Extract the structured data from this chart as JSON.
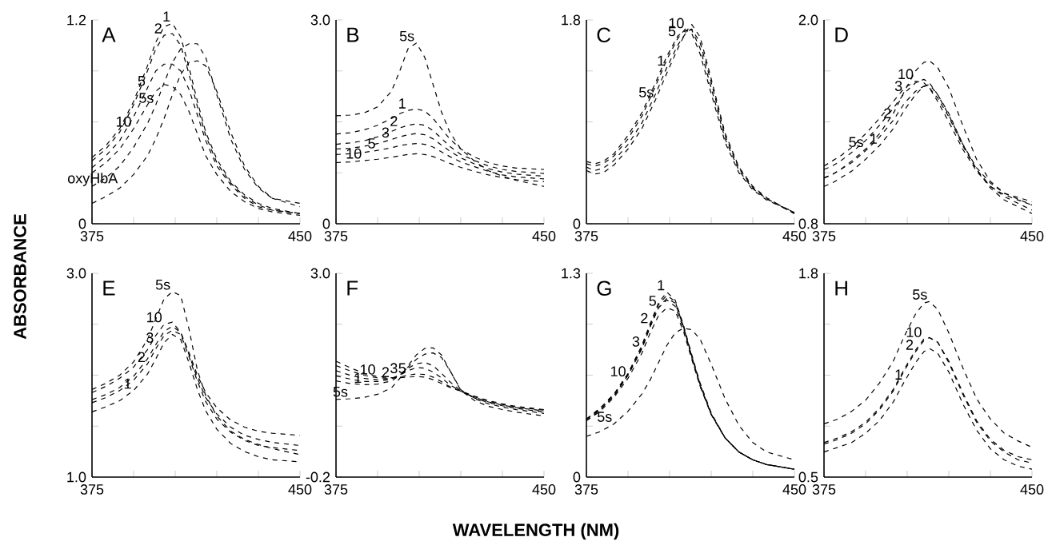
{
  "chart_data": [
    {
      "type": "line",
      "title": "A",
      "ylabel": "ABSORBANCE",
      "line_style": "dashed",
      "xlim": [
        375,
        450
      ],
      "ylim": [
        0,
        1.2
      ],
      "xticks": [
        375,
        {
          "value": 390,
          "label": null
        },
        {
          "value": 405,
          "label": null
        },
        {
          "value": 420,
          "label": null
        },
        {
          "value": 435,
          "label": null
        },
        450
      ],
      "yticks": [
        0,
        {
          "value": 0.3,
          "label": null
        },
        {
          "value": 0.6,
          "label": null
        },
        {
          "value": 0.9,
          "label": null
        },
        1.2
      ],
      "x": [
        375,
        380,
        385,
        390,
        395,
        398,
        401,
        404,
        407,
        410,
        413,
        416,
        420,
        425,
        430,
        435,
        440,
        450
      ],
      "series": [
        {
          "name": "1",
          "color": "#000000",
          "values": [
            0.39,
            0.46,
            0.56,
            0.72,
            0.93,
            1.07,
            1.16,
            1.18,
            1.1,
            0.92,
            0.72,
            0.54,
            0.38,
            0.25,
            0.17,
            0.12,
            0.09,
            0.06
          ]
        },
        {
          "name": "2",
          "color": "#000000",
          "values": [
            0.37,
            0.44,
            0.54,
            0.7,
            0.9,
            1.03,
            1.11,
            1.12,
            1.05,
            0.88,
            0.69,
            0.52,
            0.36,
            0.24,
            0.16,
            0.11,
            0.08,
            0.06
          ]
        },
        {
          "name": "5",
          "color": "#000000",
          "values": [
            0.33,
            0.4,
            0.49,
            0.63,
            0.8,
            0.9,
            0.94,
            0.94,
            0.9,
            0.79,
            0.64,
            0.49,
            0.34,
            0.23,
            0.15,
            0.1,
            0.08,
            0.06
          ]
        },
        {
          "name": "10",
          "color": "#000000",
          "values": [
            0.3,
            0.36,
            0.44,
            0.56,
            0.7,
            0.78,
            0.82,
            0.81,
            0.76,
            0.66,
            0.53,
            0.4,
            0.29,
            0.19,
            0.13,
            0.09,
            0.07,
            0.05
          ]
        },
        {
          "name": "5s",
          "color": "#000000",
          "values": [
            0.22,
            0.27,
            0.34,
            0.45,
            0.59,
            0.7,
            0.83,
            0.95,
            1.03,
            1.06,
            1.06,
            0.98,
            0.76,
            0.5,
            0.32,
            0.21,
            0.15,
            0.12
          ]
        },
        {
          "name": "oxyHbA",
          "color": "#000000",
          "values": [
            0.12,
            0.16,
            0.21,
            0.29,
            0.4,
            0.5,
            0.62,
            0.76,
            0.88,
            0.95,
            0.96,
            0.93,
            0.78,
            0.54,
            0.34,
            0.22,
            0.15,
            0.1
          ]
        }
      ]
    },
    {
      "type": "line",
      "title": "B",
      "line_style": "dashed",
      "xlim": [
        375,
        450
      ],
      "ylim": [
        0,
        3.0
      ],
      "xticks": [
        375,
        {
          "value": 390,
          "label": null
        },
        {
          "value": 405,
          "label": null
        },
        {
          "value": 420,
          "label": null
        },
        {
          "value": 435,
          "label": null
        },
        450
      ],
      "yticks": [
        0,
        {
          "value": 0.75,
          "label": null
        },
        {
          "value": 1.5,
          "label": null
        },
        {
          "value": 2.25,
          "label": null
        },
        {
          "value": 3.0,
          "label": "3.0"
        }
      ],
      "x": [
        375,
        380,
        385,
        390,
        395,
        398,
        401,
        404,
        407,
        410,
        413,
        416,
        420,
        425,
        430,
        435,
        440,
        450
      ],
      "series": [
        {
          "name": "5s",
          "color": "#000000",
          "values": [
            1.59,
            1.6,
            1.63,
            1.72,
            1.95,
            2.25,
            2.58,
            2.66,
            2.45,
            2.05,
            1.65,
            1.35,
            1.1,
            0.92,
            0.78,
            0.7,
            0.64,
            0.55
          ]
        },
        {
          "name": "1",
          "color": "#000000",
          "values": [
            1.32,
            1.34,
            1.38,
            1.45,
            1.55,
            1.62,
            1.67,
            1.69,
            1.66,
            1.55,
            1.4,
            1.25,
            1.1,
            0.98,
            0.9,
            0.85,
            0.82,
            0.8
          ]
        },
        {
          "name": "2",
          "color": "#000000",
          "values": [
            1.17,
            1.19,
            1.22,
            1.28,
            1.36,
            1.41,
            1.45,
            1.47,
            1.45,
            1.37,
            1.26,
            1.14,
            1.02,
            0.93,
            0.85,
            0.8,
            0.77,
            0.74
          ]
        },
        {
          "name": "3",
          "color": "#000000",
          "values": [
            1.1,
            1.11,
            1.14,
            1.18,
            1.24,
            1.28,
            1.31,
            1.33,
            1.31,
            1.25,
            1.16,
            1.07,
            0.97,
            0.88,
            0.81,
            0.76,
            0.73,
            0.7
          ]
        },
        {
          "name": "5",
          "color": "#000000",
          "values": [
            1.02,
            1.03,
            1.05,
            1.08,
            1.12,
            1.15,
            1.17,
            1.18,
            1.17,
            1.13,
            1.06,
            0.99,
            0.91,
            0.84,
            0.77,
            0.72,
            0.69,
            0.66
          ]
        },
        {
          "name": "10",
          "color": "#000000",
          "values": [
            0.9,
            0.91,
            0.93,
            0.95,
            0.98,
            1.0,
            1.02,
            1.03,
            1.02,
            0.99,
            0.94,
            0.89,
            0.83,
            0.77,
            0.72,
            0.68,
            0.65,
            0.62
          ]
        }
      ]
    },
    {
      "type": "line",
      "title": "C",
      "line_style": "dashed",
      "xlim": [
        375,
        450
      ],
      "ylim": [
        0,
        1.8
      ],
      "xticks": [
        375,
        {
          "value": 390,
          "label": null
        },
        {
          "value": 405,
          "label": null
        },
        {
          "value": 420,
          "label": null
        },
        {
          "value": 435,
          "label": null
        },
        450
      ],
      "yticks": [
        0,
        {
          "value": 0.45,
          "label": null
        },
        {
          "value": 0.9,
          "label": null
        },
        {
          "value": 1.35,
          "label": null
        },
        1.8
      ],
      "x": [
        375,
        378,
        381,
        385,
        390,
        395,
        400,
        404,
        408,
        411,
        413,
        416,
        420,
        425,
        430,
        435,
        440,
        450
      ],
      "series": [
        {
          "name": "10",
          "color": "#000000",
          "values": [
            0.55,
            0.53,
            0.55,
            0.62,
            0.78,
            0.98,
            1.25,
            1.48,
            1.66,
            1.71,
            1.68,
            1.5,
            1.15,
            0.72,
            0.45,
            0.3,
            0.21,
            0.1
          ]
        },
        {
          "name": "5",
          "color": "#000000",
          "values": [
            0.53,
            0.51,
            0.53,
            0.6,
            0.75,
            0.95,
            1.22,
            1.45,
            1.64,
            1.73,
            1.71,
            1.55,
            1.2,
            0.75,
            0.47,
            0.31,
            0.22,
            0.1
          ]
        },
        {
          "name": "1",
          "color": "#000000",
          "values": [
            0.5,
            0.47,
            0.49,
            0.56,
            0.7,
            0.89,
            1.15,
            1.38,
            1.58,
            1.69,
            1.72,
            1.6,
            1.25,
            0.78,
            0.49,
            0.32,
            0.22,
            0.09
          ]
        },
        {
          "name": "5s",
          "color": "#000000",
          "values": [
            0.47,
            0.44,
            0.45,
            0.52,
            0.66,
            0.84,
            1.1,
            1.33,
            1.55,
            1.7,
            1.76,
            1.65,
            1.28,
            0.8,
            0.5,
            0.33,
            0.23,
            0.09
          ]
        }
      ]
    },
    {
      "type": "line",
      "title": "D",
      "line_style": "dashed",
      "xlim": [
        375,
        450
      ],
      "ylim": [
        0.8,
        2.0
      ],
      "xticks": [
        375,
        {
          "value": 390,
          "label": null
        },
        {
          "value": 405,
          "label": null
        },
        {
          "value": 420,
          "label": null
        },
        {
          "value": 435,
          "label": null
        },
        450
      ],
      "yticks": [
        0.8,
        {
          "value": 1.1,
          "label": null
        },
        {
          "value": 1.4,
          "label": null
        },
        {
          "value": 1.7,
          "label": null
        },
        {
          "value": 2.0,
          "label": "2.0"
        }
      ],
      "x": [
        375,
        378,
        381,
        385,
        390,
        395,
        400,
        404,
        408,
        411,
        413,
        416,
        420,
        425,
        430,
        435,
        440,
        450
      ],
      "series": [
        {
          "name": "10",
          "color": "#000000",
          "values": [
            1.14,
            1.17,
            1.2,
            1.25,
            1.33,
            1.42,
            1.52,
            1.6,
            1.64,
            1.63,
            1.6,
            1.52,
            1.4,
            1.24,
            1.11,
            1.02,
            0.97,
            0.91
          ]
        },
        {
          "name": "3",
          "color": "#000000",
          "values": [
            1.12,
            1.14,
            1.17,
            1.22,
            1.29,
            1.38,
            1.48,
            1.57,
            1.63,
            1.65,
            1.63,
            1.56,
            1.44,
            1.27,
            1.13,
            1.04,
            0.98,
            0.91
          ]
        },
        {
          "name": "2",
          "color": "#000000",
          "values": [
            1.07,
            1.09,
            1.12,
            1.16,
            1.23,
            1.31,
            1.41,
            1.51,
            1.58,
            1.61,
            1.6,
            1.54,
            1.43,
            1.26,
            1.12,
            1.02,
            0.96,
            0.88
          ]
        },
        {
          "name": "1",
          "color": "#000000",
          "values": [
            1.02,
            1.04,
            1.07,
            1.11,
            1.18,
            1.26,
            1.36,
            1.47,
            1.56,
            1.61,
            1.62,
            1.56,
            1.45,
            1.27,
            1.12,
            1.01,
            0.94,
            0.86
          ]
        },
        {
          "name": "5s",
          "color": "#000000",
          "values": [
            1.07,
            1.09,
            1.12,
            1.17,
            1.24,
            1.33,
            1.45,
            1.58,
            1.7,
            1.75,
            1.76,
            1.72,
            1.6,
            1.38,
            1.18,
            1.05,
            0.98,
            0.93
          ]
        }
      ]
    },
    {
      "type": "line",
      "title": "E",
      "line_style": "dashed",
      "xlim": [
        375,
        450
      ],
      "ylim": [
        1.0,
        3.0
      ],
      "xticks": [
        375,
        {
          "value": 390,
          "label": null
        },
        {
          "value": 405,
          "label": null
        },
        {
          "value": 420,
          "label": null
        },
        {
          "value": 435,
          "label": null
        },
        450
      ],
      "yticks": [
        {
          "value": 1.0,
          "label": "1.0"
        },
        {
          "value": 1.5,
          "label": null
        },
        {
          "value": 2.0,
          "label": null
        },
        {
          "value": 2.5,
          "label": null
        },
        {
          "value": 3.0,
          "label": "3.0"
        }
      ],
      "x": [
        375,
        380,
        385,
        390,
        395,
        398,
        401,
        404,
        407,
        410,
        413,
        416,
        420,
        425,
        430,
        435,
        440,
        450
      ],
      "series": [
        {
          "name": "5s",
          "color": "#000000",
          "values": [
            1.86,
            1.92,
            2.0,
            2.13,
            2.35,
            2.55,
            2.75,
            2.82,
            2.78,
            2.45,
            2.05,
            1.8,
            1.6,
            1.45,
            1.37,
            1.32,
            1.28,
            1.22
          ]
        },
        {
          "name": "10",
          "color": "#000000",
          "values": [
            1.83,
            1.89,
            1.97,
            2.08,
            2.25,
            2.39,
            2.5,
            2.52,
            2.42,
            2.22,
            2.0,
            1.83,
            1.68,
            1.56,
            1.49,
            1.45,
            1.43,
            1.41
          ]
        },
        {
          "name": "3",
          "color": "#000000",
          "values": [
            1.76,
            1.81,
            1.88,
            1.99,
            2.16,
            2.3,
            2.43,
            2.48,
            2.42,
            2.2,
            1.97,
            1.78,
            1.62,
            1.49,
            1.41,
            1.37,
            1.34,
            1.31
          ]
        },
        {
          "name": "2",
          "color": "#000000",
          "values": [
            1.73,
            1.78,
            1.85,
            1.95,
            2.11,
            2.26,
            2.39,
            2.44,
            2.4,
            2.18,
            1.94,
            1.74,
            1.57,
            1.44,
            1.36,
            1.31,
            1.29,
            1.26
          ]
        },
        {
          "name": "1",
          "color": "#000000",
          "values": [
            1.64,
            1.69,
            1.75,
            1.85,
            2.01,
            2.16,
            2.32,
            2.4,
            2.35,
            2.12,
            1.86,
            1.65,
            1.47,
            1.33,
            1.25,
            1.2,
            1.17,
            1.15
          ]
        }
      ]
    },
    {
      "type": "line",
      "title": "F",
      "xlabel": "WAVELENGTH (NM)",
      "line_style": "dashed",
      "xlim": [
        375,
        450
      ],
      "ylim": [
        -0.2,
        3.0
      ],
      "xticks": [
        375,
        {
          "value": 390,
          "label": null
        },
        {
          "value": 405,
          "label": null
        },
        {
          "value": 420,
          "label": null
        },
        {
          "value": 435,
          "label": null
        },
        450
      ],
      "yticks": [
        -0.2,
        {
          "value": 0.6,
          "label": null
        },
        {
          "value": 1.4,
          "label": null
        },
        {
          "value": 2.2,
          "label": null
        },
        {
          "value": 3.0,
          "label": "3.0"
        }
      ],
      "x": [
        375,
        380,
        385,
        390,
        395,
        398,
        401,
        404,
        407,
        410,
        413,
        416,
        420,
        425,
        430,
        435,
        440,
        450
      ],
      "series": [
        {
          "name": "10",
          "color": "#000000",
          "values": [
            1.62,
            1.52,
            1.43,
            1.38,
            1.36,
            1.36,
            1.37,
            1.38,
            1.37,
            1.33,
            1.27,
            1.21,
            1.15,
            1.07,
            1.0,
            0.95,
            0.91,
            0.86
          ]
        },
        {
          "name": "5",
          "color": "#000000",
          "values": [
            1.55,
            1.47,
            1.4,
            1.36,
            1.35,
            1.37,
            1.4,
            1.42,
            1.41,
            1.37,
            1.3,
            1.22,
            1.15,
            1.06,
            0.99,
            0.94,
            0.9,
            0.85
          ]
        },
        {
          "name": "3",
          "color": "#000000",
          "values": [
            1.47,
            1.4,
            1.35,
            1.33,
            1.35,
            1.4,
            1.47,
            1.52,
            1.51,
            1.45,
            1.36,
            1.25,
            1.15,
            1.05,
            0.98,
            0.93,
            0.89,
            0.84
          ]
        },
        {
          "name": "2",
          "color": "#000000",
          "values": [
            1.39,
            1.34,
            1.3,
            1.3,
            1.34,
            1.41,
            1.51,
            1.58,
            1.6,
            1.55,
            1.43,
            1.3,
            1.15,
            1.04,
            0.97,
            0.92,
            0.88,
            0.82
          ]
        },
        {
          "name": "1",
          "color": "#000000",
          "values": [
            1.31,
            1.27,
            1.25,
            1.26,
            1.31,
            1.4,
            1.53,
            1.65,
            1.73,
            1.75,
            1.68,
            1.48,
            1.17,
            1.03,
            0.95,
            0.9,
            0.86,
            0.8
          ]
        },
        {
          "name": "5s",
          "color": "#000000",
          "values": [
            1.02,
            1.03,
            1.05,
            1.1,
            1.2,
            1.35,
            1.55,
            1.72,
            1.82,
            1.83,
            1.72,
            1.48,
            1.16,
            1.0,
            0.91,
            0.86,
            0.82,
            0.76
          ]
        }
      ]
    },
    {
      "type": "line",
      "title": "G",
      "line_style": "dashed",
      "xlim": [
        375,
        450
      ],
      "ylim": [
        0,
        1.3
      ],
      "xticks": [
        375,
        {
          "value": 390,
          "label": null
        },
        {
          "value": 405,
          "label": null
        },
        {
          "value": 420,
          "label": null
        },
        {
          "value": 435,
          "label": null
        },
        450
      ],
      "yticks": [
        0,
        {
          "value": 0.325,
          "label": null
        },
        {
          "value": 0.65,
          "label": null
        },
        {
          "value": 0.975,
          "label": null
        },
        1.3
      ],
      "x": [
        375,
        380,
        385,
        390,
        395,
        398,
        401,
        404,
        407,
        410,
        413,
        416,
        420,
        425,
        430,
        435,
        440,
        450
      ],
      "series": [
        {
          "name": "1",
          "color": "#000000",
          "values": [
            0.37,
            0.44,
            0.53,
            0.66,
            0.84,
            0.98,
            1.11,
            1.18,
            1.13,
            0.97,
            0.78,
            0.6,
            0.41,
            0.25,
            0.16,
            0.11,
            0.08,
            0.05
          ]
        },
        {
          "name": "5",
          "color": "#000000",
          "values": [
            0.37,
            0.43,
            0.52,
            0.65,
            0.82,
            0.96,
            1.08,
            1.13,
            1.09,
            0.95,
            0.76,
            0.58,
            0.4,
            0.25,
            0.16,
            0.11,
            0.08,
            0.05
          ]
        },
        {
          "name": "2",
          "color": "#000000",
          "values": [
            0.37,
            0.44,
            0.53,
            0.66,
            0.83,
            0.97,
            1.1,
            1.16,
            1.12,
            0.96,
            0.77,
            0.59,
            0.4,
            0.25,
            0.16,
            0.11,
            0.08,
            0.05
          ]
        },
        {
          "name": "3",
          "color": "#000000",
          "values": [
            0.36,
            0.43,
            0.52,
            0.65,
            0.82,
            0.96,
            1.08,
            1.14,
            1.11,
            0.96,
            0.77,
            0.59,
            0.4,
            0.25,
            0.16,
            0.11,
            0.08,
            0.05
          ]
        },
        {
          "name": "10",
          "color": "#000000",
          "values": [
            0.36,
            0.42,
            0.51,
            0.63,
            0.79,
            0.92,
            1.03,
            1.08,
            1.06,
            0.93,
            0.75,
            0.58,
            0.4,
            0.25,
            0.16,
            0.11,
            0.08,
            0.05
          ]
        },
        {
          "name": "5s",
          "color": "#000000",
          "values": [
            0.26,
            0.29,
            0.34,
            0.42,
            0.53,
            0.62,
            0.73,
            0.84,
            0.92,
            0.95,
            0.94,
            0.88,
            0.72,
            0.5,
            0.33,
            0.22,
            0.16,
            0.11
          ]
        }
      ]
    },
    {
      "type": "line",
      "title": "H",
      "line_style": "dashed",
      "xlim": [
        375,
        450
      ],
      "ylim": [
        0.5,
        1.8
      ],
      "xticks": [
        375,
        {
          "value": 390,
          "label": null
        },
        {
          "value": 405,
          "label": null
        },
        {
          "value": 420,
          "label": null
        },
        {
          "value": 435,
          "label": null
        },
        450
      ],
      "yticks": [
        0.5,
        {
          "value": 0.825,
          "label": null
        },
        {
          "value": 1.15,
          "label": null
        },
        {
          "value": 1.475,
          "label": null
        },
        1.8
      ],
      "x": [
        375,
        380,
        385,
        390,
        395,
        400,
        404,
        408,
        411,
        413,
        416,
        420,
        425,
        430,
        435,
        440,
        445,
        450
      ],
      "series": [
        {
          "name": "5s",
          "color": "#000000",
          "values": [
            0.84,
            0.87,
            0.92,
            0.99,
            1.1,
            1.24,
            1.4,
            1.54,
            1.61,
            1.62,
            1.57,
            1.42,
            1.2,
            1.0,
            0.87,
            0.78,
            0.73,
            0.69
          ]
        },
        {
          "name": "10",
          "color": "#000000",
          "values": [
            0.72,
            0.75,
            0.79,
            0.85,
            0.94,
            1.06,
            1.19,
            1.31,
            1.38,
            1.39,
            1.36,
            1.24,
            1.04,
            0.86,
            0.74,
            0.67,
            0.63,
            0.61
          ]
        },
        {
          "name": "2",
          "color": "#000000",
          "values": [
            0.71,
            0.74,
            0.78,
            0.84,
            0.93,
            1.05,
            1.18,
            1.3,
            1.37,
            1.39,
            1.36,
            1.23,
            1.03,
            0.85,
            0.73,
            0.66,
            0.61,
            0.59
          ]
        },
        {
          "name": "1",
          "color": "#000000",
          "values": [
            0.66,
            0.69,
            0.72,
            0.78,
            0.86,
            0.98,
            1.11,
            1.23,
            1.3,
            1.32,
            1.29,
            1.17,
            0.97,
            0.8,
            0.68,
            0.61,
            0.57,
            0.55
          ]
        }
      ]
    }
  ]
}
